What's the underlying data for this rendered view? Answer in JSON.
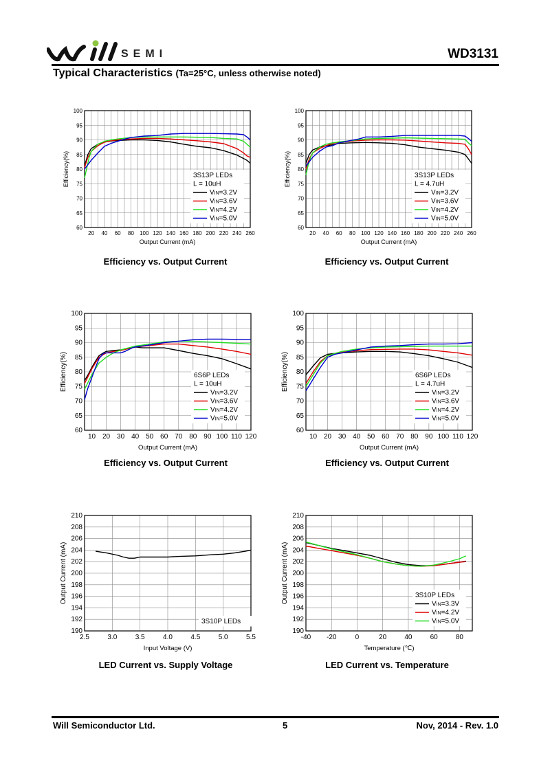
{
  "header": {
    "logo_text": "SEMI",
    "doc_id": "WD3131",
    "section_title": "Typical Characteristics",
    "section_subtitle": "(Ta=25°C, unless otherwise noted)"
  },
  "footer": {
    "company": "Will Semiconductor Ltd.",
    "page_number": "5",
    "date_rev": "Nov, 2014 - Rev. 1.0"
  },
  "colors": {
    "black": "#000000",
    "red": "#e00000",
    "green": "#22dd22",
    "blue": "#0000cc"
  },
  "chart_data": [
    {
      "type": "line",
      "caption": "Efficiency vs. Output Current",
      "xlabel": "Output Current (mA)",
      "ylabel": "Efficiency(%)",
      "xlim": [
        10,
        260
      ],
      "ylim": [
        60,
        100
      ],
      "xticks": [
        20,
        40,
        60,
        80,
        100,
        120,
        140,
        160,
        180,
        200,
        220,
        240,
        260
      ],
      "yticks": [
        60,
        65,
        70,
        75,
        80,
        85,
        90,
        95,
        100
      ],
      "legend_title": [
        "3S13P LEDs",
        "L = 10uH"
      ],
      "legend_position": "center-right",
      "series": [
        {
          "name": "VIN=3.2V",
          "color": "#000000",
          "x": [
            10,
            15,
            20,
            30,
            40,
            50,
            60,
            80,
            100,
            120,
            140,
            160,
            180,
            200,
            220,
            240,
            255,
            260
          ],
          "y": [
            81,
            85,
            87,
            88.5,
            89.3,
            89.6,
            89.8,
            90,
            90,
            89.8,
            89.3,
            88.5,
            87.8,
            87.3,
            86.3,
            84.8,
            83,
            82
          ]
        },
        {
          "name": "VIN=3.6V",
          "color": "#e00000",
          "x": [
            10,
            15,
            20,
            30,
            40,
            50,
            60,
            80,
            100,
            120,
            140,
            160,
            180,
            200,
            220,
            240,
            250,
            255,
            260
          ],
          "y": [
            80.5,
            84,
            86,
            88,
            89.2,
            89.7,
            90,
            90.3,
            90.5,
            90.5,
            90.3,
            90,
            89.7,
            89.3,
            88.7,
            87,
            85.5,
            84.5,
            84
          ]
        },
        {
          "name": "VIN=4.2V",
          "color": "#22dd22",
          "x": [
            10,
            13,
            17,
            20,
            30,
            40,
            50,
            60,
            80,
            100,
            120,
            140,
            160,
            180,
            200,
            220,
            240,
            250,
            255,
            260
          ],
          "y": [
            77,
            80,
            84,
            86,
            88.5,
            89.5,
            90,
            90.3,
            90.8,
            91,
            91,
            91,
            91,
            90.9,
            90.8,
            90.5,
            90.3,
            89.5,
            88.5,
            87.5
          ]
        },
        {
          "name": "VIN=5.0V",
          "color": "#0000cc",
          "x": [
            10,
            15,
            20,
            30,
            40,
            50,
            60,
            70,
            80,
            100,
            120,
            140,
            160,
            180,
            200,
            220,
            240,
            250,
            255,
            260
          ],
          "y": [
            80,
            81.5,
            83,
            85.5,
            87.8,
            88.8,
            89.5,
            90.2,
            90.8,
            91.3,
            91.5,
            92,
            92.2,
            92.2,
            92.2,
            92.1,
            92,
            91.8,
            91,
            90
          ]
        }
      ]
    },
    {
      "type": "line",
      "caption": "Efficiency vs. Output Current",
      "xlabel": "Output Current (mA)",
      "ylabel": "Efficiency(%)",
      "xlim": [
        10,
        260
      ],
      "ylim": [
        60,
        100
      ],
      "xticks": [
        20,
        40,
        60,
        80,
        100,
        120,
        140,
        160,
        180,
        200,
        220,
        240,
        260
      ],
      "yticks": [
        60,
        65,
        70,
        75,
        80,
        85,
        90,
        95,
        100
      ],
      "legend_title": [
        "3S13P LEDs",
        "L = 4.7uH"
      ],
      "legend_position": "center-right",
      "series": [
        {
          "name": "VIN=3.2V",
          "color": "#000000",
          "x": [
            10,
            15,
            20,
            30,
            40,
            50,
            60,
            80,
            100,
            120,
            140,
            160,
            180,
            200,
            220,
            240,
            250,
            255,
            260
          ],
          "y": [
            82,
            85,
            86.5,
            87.5,
            88,
            88.3,
            88.8,
            89,
            89.1,
            89,
            88.8,
            88.3,
            87.5,
            87,
            86.5,
            85.8,
            85,
            83.5,
            82
          ]
        },
        {
          "name": "VIN=3.6V",
          "color": "#e00000",
          "x": [
            10,
            15,
            20,
            30,
            40,
            50,
            60,
            80,
            100,
            120,
            140,
            160,
            180,
            200,
            220,
            240,
            250,
            255,
            260
          ],
          "y": [
            80,
            83.5,
            85.5,
            87,
            88,
            88.8,
            89.2,
            89.6,
            89.9,
            90,
            90,
            89.9,
            89.6,
            89.3,
            89,
            88.8,
            88.5,
            87,
            85
          ]
        },
        {
          "name": "VIN=4.2V",
          "color": "#22dd22",
          "x": [
            10,
            13,
            17,
            20,
            30,
            40,
            50,
            60,
            80,
            100,
            120,
            140,
            160,
            180,
            200,
            220,
            240,
            250,
            255,
            260
          ],
          "y": [
            78,
            81,
            84,
            85.5,
            87.5,
            88.5,
            89,
            89.3,
            89.8,
            90.3,
            90.5,
            90.6,
            90.7,
            90.6,
            90.5,
            90.4,
            90.3,
            90.2,
            89,
            88
          ]
        },
        {
          "name": "VIN=5.0V",
          "color": "#0000cc",
          "x": [
            10,
            15,
            20,
            30,
            40,
            50,
            60,
            80,
            90,
            100,
            120,
            140,
            160,
            180,
            200,
            220,
            240,
            250,
            255,
            260
          ],
          "y": [
            81,
            82.5,
            84,
            86,
            87.5,
            88,
            89,
            89.9,
            90.3,
            91,
            91,
            91.2,
            91.5,
            91.5,
            91.5,
            91.5,
            91.5,
            91.3,
            90.5,
            89.5
          ]
        }
      ]
    },
    {
      "type": "line",
      "caption": "Efficiency vs. Output Current",
      "xlabel": "Output Current (mA)",
      "ylabel": "Efficiency(%)",
      "xlim": [
        5,
        120
      ],
      "ylim": [
        60,
        100
      ],
      "xticks": [
        10,
        20,
        30,
        40,
        50,
        60,
        70,
        80,
        90,
        100,
        110,
        120
      ],
      "yticks": [
        60,
        65,
        70,
        75,
        80,
        85,
        90,
        95,
        100
      ],
      "legend_title": [
        "6S6P LEDs",
        "L = 10uH"
      ],
      "legend_position": "center-right",
      "series": [
        {
          "name": "VIN=3.2V",
          "color": "#000000",
          "x": [
            5,
            8,
            10,
            13,
            15,
            18,
            20,
            25,
            30,
            35,
            40,
            45,
            50,
            60,
            70,
            80,
            90,
            100,
            110,
            120
          ],
          "y": [
            77,
            79.5,
            81.5,
            84,
            85.5,
            86.5,
            87,
            87.3,
            87.5,
            88,
            88.5,
            88.2,
            88.2,
            88.2,
            87.3,
            86.3,
            85.5,
            84.5,
            82.8,
            81
          ]
        },
        {
          "name": "VIN=3.6V",
          "color": "#e00000",
          "x": [
            5,
            10,
            15,
            20,
            25,
            30,
            40,
            50,
            60,
            70,
            80,
            90,
            100,
            110,
            120
          ],
          "y": [
            76,
            81,
            85,
            86.5,
            87,
            87.3,
            88.5,
            89,
            89.5,
            89.5,
            89,
            88.5,
            87.8,
            87,
            86
          ]
        },
        {
          "name": "VIN=4.2V",
          "color": "#22dd22",
          "x": [
            5,
            10,
            15,
            20,
            25,
            30,
            40,
            50,
            60,
            70,
            80,
            90,
            100,
            110,
            120
          ],
          "y": [
            74,
            79,
            83,
            85,
            86.5,
            87.5,
            88.8,
            89.5,
            90.2,
            90.5,
            90.5,
            90.2,
            90,
            89.8,
            89.5
          ]
        },
        {
          "name": "VIN=5.0V",
          "color": "#0000cc",
          "x": [
            5,
            7,
            10,
            13,
            15,
            18,
            20,
            25,
            30,
            33,
            38,
            40,
            50,
            60,
            70,
            80,
            90,
            100,
            110,
            120
          ],
          "y": [
            70.5,
            74,
            78,
            82,
            84.5,
            86.3,
            86.5,
            86.5,
            86.5,
            87,
            88.2,
            88.5,
            89.2,
            90,
            90.5,
            91,
            91.2,
            91.2,
            91.1,
            91
          ]
        }
      ]
    },
    {
      "type": "line",
      "caption": "Efficiency vs. Output Current",
      "xlabel": "Output Current (mA)",
      "ylabel": "Efficiency(%)",
      "xlim": [
        5,
        120
      ],
      "ylim": [
        60,
        100
      ],
      "xticks": [
        10,
        20,
        30,
        40,
        50,
        60,
        70,
        80,
        90,
        100,
        110,
        120
      ],
      "yticks": [
        60,
        65,
        70,
        75,
        80,
        85,
        90,
        95,
        100
      ],
      "legend_title": [
        "6S6P LEDs",
        "L = 4.7uH"
      ],
      "legend_position": "center-right",
      "series": [
        {
          "name": "VIN=3.2V",
          "color": "#000000",
          "x": [
            5,
            10,
            15,
            20,
            25,
            30,
            40,
            50,
            60,
            70,
            80,
            90,
            100,
            110,
            120
          ],
          "y": [
            79,
            82,
            84.8,
            86,
            86.3,
            86.5,
            86.8,
            87,
            87,
            86.8,
            86.2,
            85.5,
            84.5,
            83.3,
            81.5
          ]
        },
        {
          "name": "VIN=3.6V",
          "color": "#e00000",
          "x": [
            5,
            10,
            15,
            20,
            25,
            30,
            40,
            50,
            60,
            70,
            80,
            90,
            100,
            110,
            120
          ],
          "y": [
            76,
            80,
            83.5,
            85.5,
            86.2,
            86.7,
            87.2,
            87.6,
            87.7,
            87.8,
            87.8,
            87.5,
            87,
            86.5,
            85.7
          ]
        },
        {
          "name": "VIN=4.2V",
          "color": "#22dd22",
          "x": [
            5,
            10,
            15,
            20,
            25,
            30,
            40,
            50,
            60,
            70,
            80,
            90,
            100,
            110,
            120
          ],
          "y": [
            75,
            79,
            83,
            85.5,
            86.3,
            87,
            87.8,
            88.2,
            88.5,
            88.6,
            88.7,
            88.8,
            88.8,
            88.8,
            88.8
          ]
        },
        {
          "name": "VIN=5.0V",
          "color": "#0000cc",
          "x": [
            5,
            10,
            15,
            20,
            25,
            30,
            40,
            50,
            60,
            70,
            80,
            90,
            100,
            110,
            120
          ],
          "y": [
            73.5,
            77.5,
            81.5,
            85,
            86,
            86.5,
            87.5,
            88.5,
            88.8,
            89,
            89.3,
            89.5,
            89.5,
            89.6,
            90
          ]
        }
      ]
    },
    {
      "type": "line",
      "caption": "LED Current vs. Supply Voltage",
      "xlabel": "Input Voltage (V)",
      "ylabel": "Output Current (mA)",
      "xlim": [
        2.5,
        5.5
      ],
      "ylim": [
        190,
        210
      ],
      "xticks": [
        "2.5",
        "3.0",
        "3.5",
        "4.0",
        "4.5",
        "5.0",
        "5.5"
      ],
      "xtick_values": [
        2.5,
        3.0,
        3.5,
        4.0,
        4.5,
        5.0,
        5.5
      ],
      "yticks": [
        190,
        192,
        194,
        196,
        198,
        200,
        202,
        204,
        206,
        208,
        210
      ],
      "legend_title": [
        "3S10P LEDs"
      ],
      "legend_position": "bottom-right",
      "series": [
        {
          "name": "",
          "color": "#000000",
          "x": [
            2.7,
            2.9,
            3.1,
            3.2,
            3.3,
            3.4,
            3.5,
            3.7,
            4.0,
            4.2,
            4.5,
            4.8,
            5.0,
            5.2,
            5.4,
            5.5
          ],
          "y": [
            203.8,
            203.5,
            203.1,
            202.8,
            202.6,
            202.6,
            202.8,
            202.8,
            202.8,
            202.9,
            203,
            203.2,
            203.3,
            203.5,
            203.8,
            204
          ]
        }
      ]
    },
    {
      "type": "line",
      "caption": "LED Current vs. Temperature",
      "xlabel": "Temperature (℃)",
      "ylabel": "Output Current (mA)",
      "xlim": [
        -40,
        90
      ],
      "ylim": [
        190,
        210
      ],
      "xticks": [
        "-40",
        "-20",
        "0",
        "20",
        "40",
        "60",
        "80"
      ],
      "xtick_values": [
        -40,
        -20,
        0,
        20,
        40,
        60,
        80
      ],
      "yticks": [
        190,
        192,
        194,
        196,
        198,
        200,
        202,
        204,
        206,
        208,
        210
      ],
      "legend_title": [
        "3S10P LEDs"
      ],
      "legend_position": "bottom-right",
      "series": [
        {
          "name": "VIN=3.3V",
          "color": "#000000",
          "x": [
            -40,
            -30,
            -20,
            -10,
            0,
            10,
            20,
            30,
            40,
            50,
            60,
            70,
            80,
            85
          ],
          "y": [
            205.3,
            204.8,
            204.3,
            203.9,
            203.5,
            203.1,
            202.5,
            201.9,
            201.5,
            201.3,
            201.3,
            201.6,
            201.9,
            202.1
          ]
        },
        {
          "name": "VIN=4.2V",
          "color": "#e00000",
          "x": [
            -40,
            -30,
            -20,
            -10,
            0,
            10,
            20,
            30,
            40,
            50,
            60,
            70,
            80,
            85
          ],
          "y": [
            204.7,
            204.3,
            203.9,
            203.5,
            203.1,
            202.6,
            202,
            201.6,
            201.3,
            201.2,
            201.3,
            201.6,
            201.9,
            202
          ]
        },
        {
          "name": "VIN=5.0V",
          "color": "#22dd22",
          "x": [
            -40,
            -30,
            -20,
            -10,
            0,
            10,
            20,
            30,
            40,
            50,
            60,
            70,
            80,
            85
          ],
          "y": [
            205.4,
            204.8,
            204.2,
            203.7,
            203.2,
            202.6,
            202,
            201.6,
            201.3,
            201.2,
            201.4,
            201.9,
            202.5,
            203
          ]
        }
      ]
    }
  ]
}
